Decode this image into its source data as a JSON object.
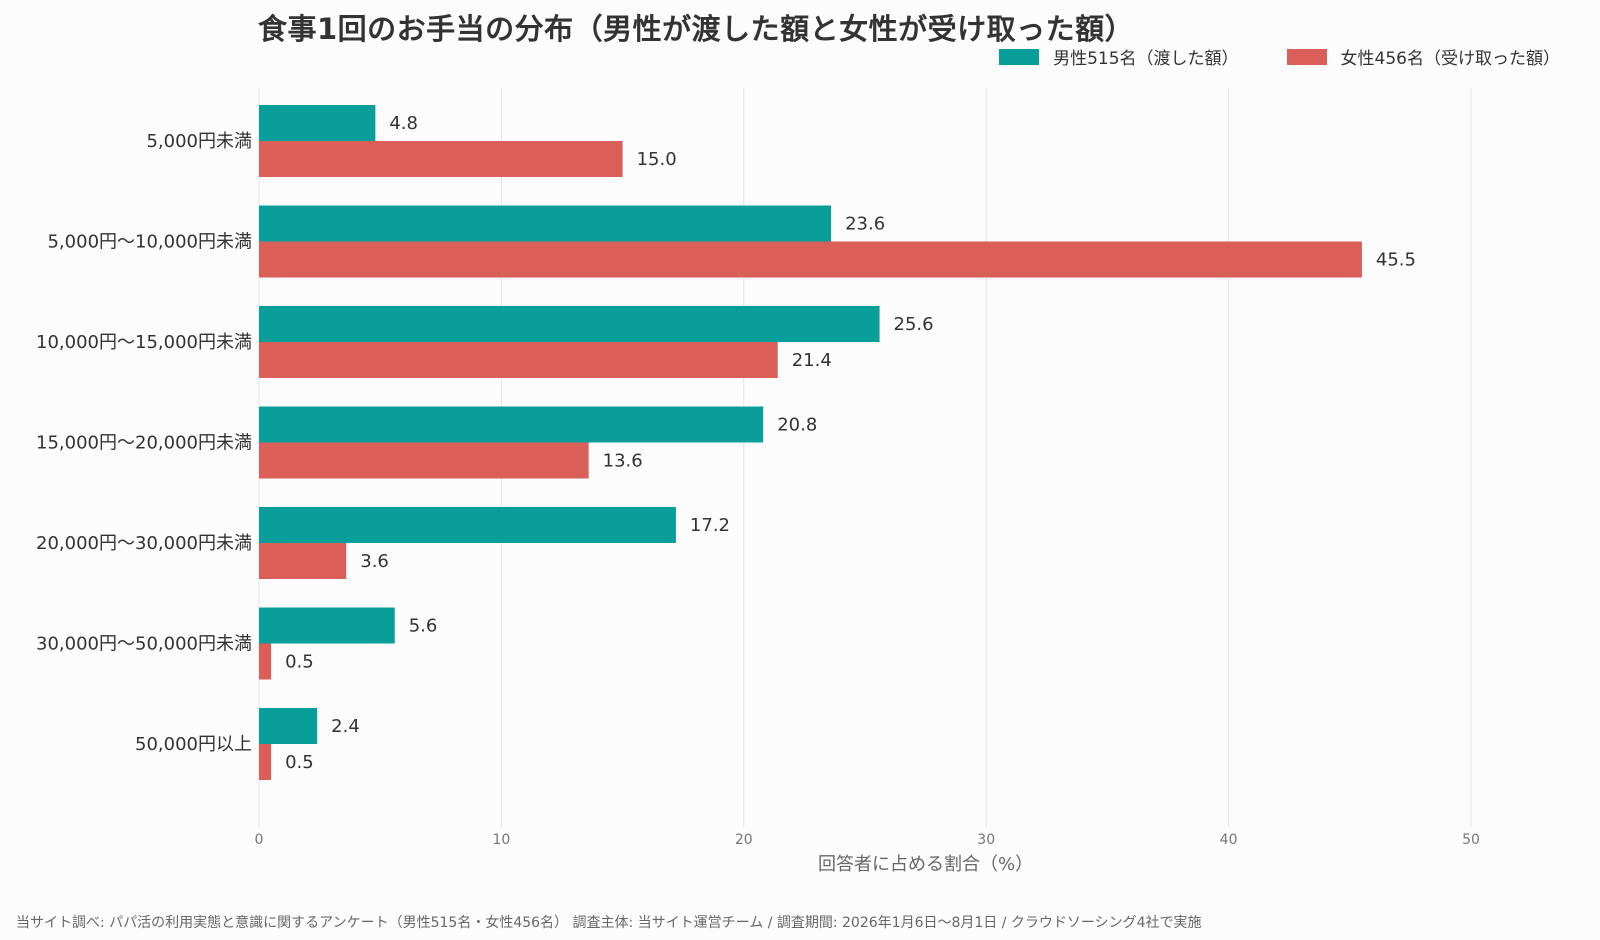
{
  "chart_data": {
    "type": "bar",
    "orientation": "horizontal",
    "title": "食事1回のお手当の分布（男性が渡した額と女性が受け取った額）",
    "xlabel": "回答者に占める割合（%）",
    "ylabel": "",
    "xlim": [
      0,
      55
    ],
    "xticks": [
      0,
      10,
      20,
      30,
      40,
      50
    ],
    "grid": "vertical",
    "legend_position": "top-right",
    "categories": [
      "5,000円未満",
      "5,000円〜10,000円未満",
      "10,000円〜15,000円未満",
      "15,000円〜20,000円未満",
      "20,000円〜30,000円未満",
      "30,000円〜50,000円未満",
      "50,000円以上"
    ],
    "series": [
      {
        "name": "男性515名（渡した額）",
        "color": "#0a9e9a",
        "values": [
          4.8,
          23.6,
          25.6,
          20.8,
          17.2,
          5.6,
          2.4
        ]
      },
      {
        "name": "女性456名（受け取った額）",
        "color": "#d95f58",
        "values": [
          15.0,
          45.5,
          21.4,
          13.6,
          3.6,
          0.5,
          0.5
        ]
      }
    ],
    "value_format": "0.0"
  },
  "footer": {
    "source": "当サイト調べ: パパ活の利用実態と意識に関するアンケート（男性515名・女性456名） 調査主体: 当サイト運営チーム / 調査期間: 2026年1月6日〜8月1日 / クラウドソーシング4社で実施"
  }
}
